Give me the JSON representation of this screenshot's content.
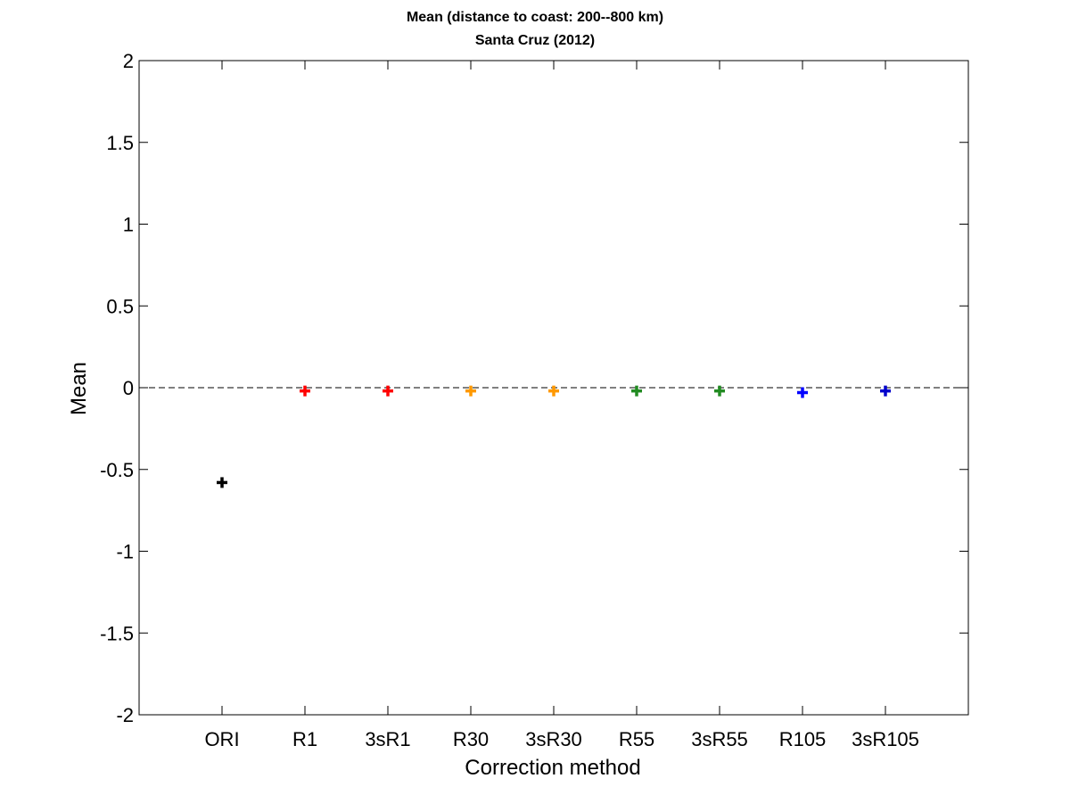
{
  "chart_data": {
    "type": "scatter",
    "title": "Mean (distance to coast: 200--800 km)",
    "subtitle": "Santa Cruz (2012)",
    "xlabel": "Correction method",
    "ylabel": "Mean",
    "categories": [
      "ORI",
      "R1",
      "3sR1",
      "R30",
      "3sR30",
      "R55",
      "3sR55",
      "R105",
      "3sR105"
    ],
    "values": [
      -0.58,
      -0.02,
      -0.02,
      -0.02,
      -0.02,
      -0.02,
      -0.02,
      -0.03,
      -0.02
    ],
    "colors": [
      "#000000",
      "#ff0000",
      "#ff0000",
      "#ff9900",
      "#ff9900",
      "#228b22",
      "#228b22",
      "#0000ff",
      "#0000cc"
    ],
    "ylim": [
      -2,
      2
    ],
    "yticks": [
      "-2",
      "-1.5",
      "-1",
      "-0.5",
      "0",
      "0.5",
      "1",
      "1.5",
      "2"
    ],
    "ytick_values": [
      -2,
      -1.5,
      -1,
      -0.5,
      0,
      0.5,
      1,
      1.5,
      2
    ],
    "reference_line": 0,
    "marker": "plus",
    "grid": false
  }
}
